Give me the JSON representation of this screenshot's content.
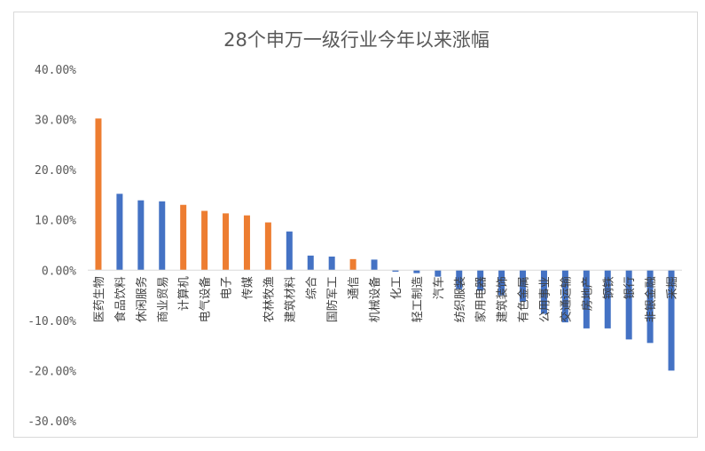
{
  "chart_data": {
    "type": "bar",
    "title": "28个申万一级行业今年以来涨幅",
    "xlabel": "",
    "ylabel": "",
    "ylim": [
      -0.3,
      0.4
    ],
    "yticks": [
      0.4,
      0.3,
      0.2,
      0.1,
      0.0,
      -0.1,
      -0.2,
      -0.3
    ],
    "ytick_labels": [
      "40.00%",
      "30.00%",
      "20.00%",
      "10.00%",
      "0.00%",
      "-10.00%",
      "-20.00%",
      "-30.00%"
    ],
    "grid": false,
    "legend": "none",
    "colors": {
      "blue": "#4472c4",
      "orange": "#ed7d31"
    },
    "categories": [
      "医药生物",
      "食品饮料",
      "休闲服务",
      "商业贸易",
      "计算机",
      "电气设备",
      "电子",
      "传媒",
      "农林牧渔",
      "建筑材料",
      "综合",
      "国防军工",
      "通信",
      "机械设备",
      "化工",
      "轻工制造",
      "汽车",
      "纺织服装",
      "家用电器",
      "建筑装饰",
      "有色金属",
      "公用事业",
      "交通运输",
      "房地产",
      "钢铁",
      "银行",
      "非银金融",
      "采掘"
    ],
    "values": [
      0.302,
      0.152,
      0.139,
      0.137,
      0.13,
      0.118,
      0.113,
      0.109,
      0.095,
      0.077,
      0.029,
      0.027,
      0.022,
      0.021,
      -0.003,
      -0.006,
      -0.013,
      -0.038,
      -0.041,
      -0.05,
      -0.063,
      -0.087,
      -0.104,
      -0.116,
      -0.116,
      -0.138,
      -0.145,
      -0.2
    ],
    "bar_colors": [
      "orange",
      "blue",
      "blue",
      "blue",
      "orange",
      "orange",
      "orange",
      "orange",
      "orange",
      "blue",
      "blue",
      "blue",
      "orange",
      "blue",
      "blue",
      "blue",
      "blue",
      "blue",
      "blue",
      "blue",
      "blue",
      "blue",
      "blue",
      "blue",
      "blue",
      "blue",
      "blue",
      "blue"
    ]
  }
}
